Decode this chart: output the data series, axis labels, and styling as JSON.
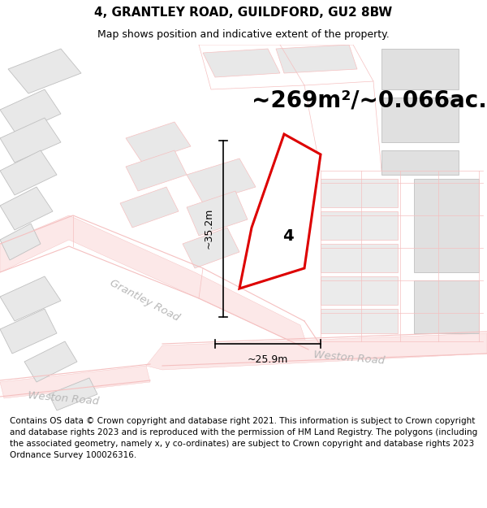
{
  "title_line1": "4, GRANTLEY ROAD, GUILDFORD, GU2 8BW",
  "title_line2": "Map shows position and indicative extent of the property.",
  "area_text": "~269m²/~0.066ac.",
  "label_number": "4",
  "dim_vertical": "~35.2m",
  "dim_horizontal": "~25.9m",
  "road_label_grantley": "Grantley Road",
  "road_label_weston1": "Weston Road",
  "road_label_weston2": "Weston Road",
  "footer_text": "Contains OS data © Crown copyright and database right 2021. This information is subject to Crown copyright and database rights 2023 and is reproduced with the permission of HM Land Registry. The polygons (including the associated geometry, namely x, y co-ordinates) are subject to Crown copyright and database rights 2023 Ordnance Survey 100026316.",
  "bg_color": "#ffffff",
  "map_bg": "#ffffff",
  "building_fill": "#e8e8e8",
  "highlight_color": "#dd0000",
  "light_red": "#f5c0c0",
  "very_light_red": "#fce8e8",
  "gray_border": "#c0c0c0",
  "dim_line_color": "#000000",
  "road_text_color": "#b8b8b8",
  "title_fontsize": 11,
  "subtitle_fontsize": 9,
  "area_fontsize": 20,
  "label_fontsize": 14,
  "dim_fontsize": 9,
  "road_fontsize": 10,
  "footer_fontsize": 7.5
}
